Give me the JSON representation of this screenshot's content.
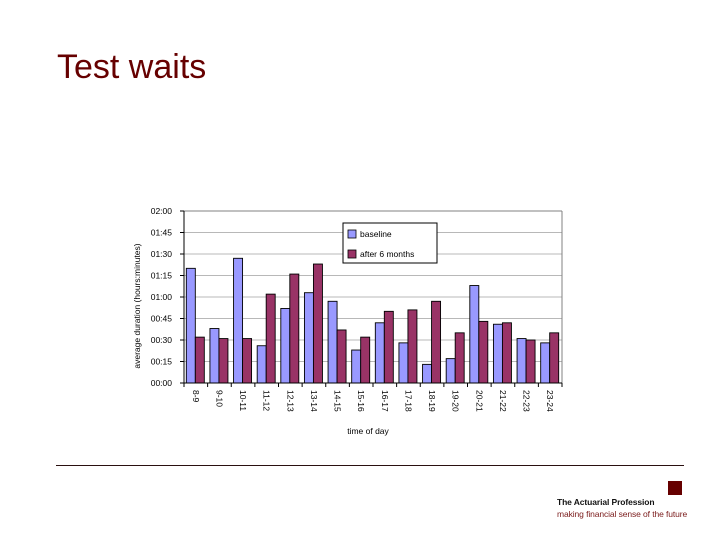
{
  "slide": {
    "title": "Test waits",
    "footer": {
      "org_name": "The Actuarial Profession",
      "tagline": "making financial sense of the future",
      "brand_color": "#660000"
    }
  },
  "chart_data": {
    "type": "bar",
    "title": "",
    "xlabel": "time of day",
    "ylabel": "average duration (hours:minutes)",
    "ylim_minutes": [
      0,
      120
    ],
    "yticks": [
      "00:00",
      "00:15",
      "00:30",
      "00:45",
      "01:00",
      "01:15",
      "01:30",
      "01:45",
      "02:00"
    ],
    "grid": true,
    "legend_position": "upper-center-right, inside plot",
    "categories": [
      "8-9",
      "9-10",
      "10-11",
      "11-12",
      "12-13",
      "13-14",
      "14-15",
      "15-16",
      "16-17",
      "17-18",
      "18-19",
      "19-20",
      "20-21",
      "21-22",
      "22-23",
      "23-24"
    ],
    "series": [
      {
        "name": "baseline",
        "color": "#9999FF",
        "values_minutes": [
          80,
          38,
          87,
          26,
          52,
          63,
          57,
          23,
          42,
          28,
          13,
          17,
          68,
          41,
          31,
          28
        ],
        "values_hhmm": [
          "01:20",
          "00:38",
          "01:27",
          "00:26",
          "00:52",
          "01:03",
          "00:57",
          "00:23",
          "00:42",
          "00:28",
          "00:13",
          "00:17",
          "01:08",
          "00:41",
          "00:31",
          "00:28"
        ]
      },
      {
        "name": "after 6 months",
        "color": "#993366",
        "values_minutes": [
          32,
          31,
          31,
          62,
          76,
          83,
          37,
          32,
          50,
          51,
          57,
          35,
          43,
          42,
          30,
          35
        ],
        "values_hhmm": [
          "00:32",
          "00:31",
          "00:31",
          "01:02",
          "01:16",
          "01:23",
          "00:37",
          "00:32",
          "00:50",
          "00:51",
          "00:57",
          "00:35",
          "00:43",
          "00:42",
          "00:30",
          "00:35"
        ]
      }
    ]
  }
}
